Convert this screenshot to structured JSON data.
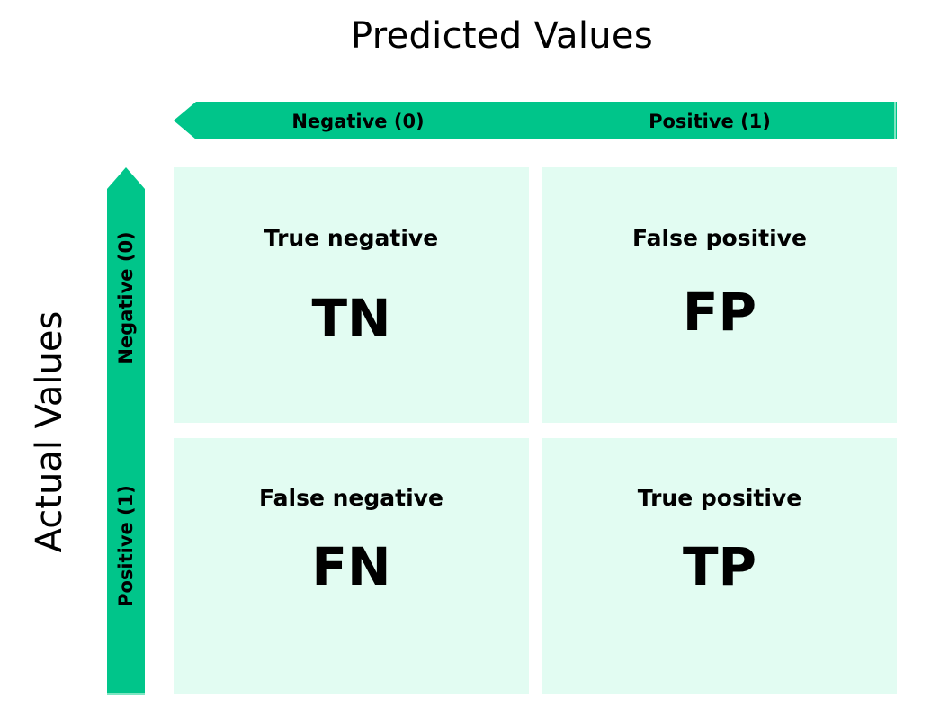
{
  "predicted_axis": {
    "title": "Predicted Values",
    "labels": [
      "Negative (0)",
      "Positive (1)"
    ]
  },
  "actual_axis": {
    "title": "Actual Values",
    "labels": [
      "Negative (0)",
      "Positive (1)"
    ]
  },
  "cells": [
    {
      "name": "True negative",
      "abbr": "TN"
    },
    {
      "name": "False positive",
      "abbr": "FP"
    },
    {
      "name": "False negative",
      "abbr": "FN"
    },
    {
      "name": "True positive",
      "abbr": "TP"
    }
  ],
  "colors": {
    "arrow": "#00c58a",
    "cell_background": "#e2fcf2",
    "text": "#000000"
  }
}
